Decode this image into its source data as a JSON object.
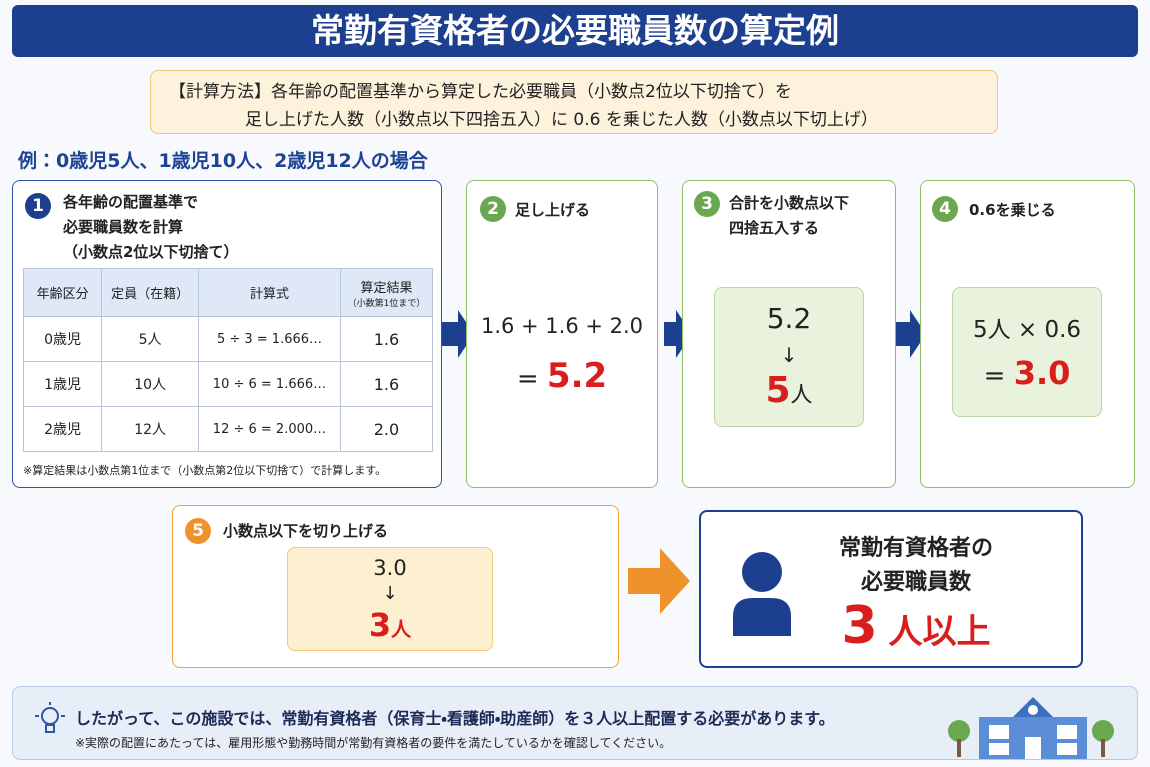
{
  "header": {
    "title": "常勤有資格者の必要職員数の算定例"
  },
  "method": {
    "line1": "【計算方法】各年齢の配置基準から算定した必要職員（小数点2位以下切捨て）を",
    "line2": "足し上げた人数（小数点以下四捨五入）に 0.6 を乗じた人数（小数点以下切上げ）"
  },
  "example": "例：0歳児5人、1歳児10人、2歳児12人の場合",
  "steps": [
    {
      "number": "1",
      "title_lines": [
        "各年齢の配置基準で",
        "必要職員数を計算",
        "（小数点2位以下切捨て）"
      ],
      "table": {
        "headers": [
          "年齢区分",
          "定員（在籍）",
          "計算式",
          "算定結果"
        ],
        "header_note": "（小数第1位まで）",
        "rows": [
          [
            "0歳児",
            "5人",
            "5 ÷ 3 = 1.666…",
            "1.6"
          ],
          [
            "1歳児",
            "10人",
            "10 ÷ 6 = 1.666…",
            "1.6"
          ],
          [
            "2歳児",
            "12人",
            "12 ÷ 6 = 2.000…",
            "2.0"
          ]
        ]
      },
      "note": "※算定結果は小数点第1位まで（小数点第2位以下切捨て）で計算します。"
    },
    {
      "number": "2",
      "title": "足し上げる",
      "formula": "1.6 + 1.6 + 2.0",
      "equals": "=",
      "result": "5.2"
    },
    {
      "number": "3",
      "title_lines": [
        "合計を小数点以下",
        "四捨五入する"
      ],
      "from": "5.2",
      "arrow": "↓",
      "result": "5",
      "unit": "人"
    },
    {
      "number": "4",
      "title": "0.6を乗じる",
      "formula": "5人 × 0.6",
      "equals": "=",
      "result": "3.0"
    },
    {
      "number": "5",
      "title": "小数点以下を切り上げる",
      "from": "3.0",
      "arrow": "↓",
      "result": "3",
      "unit": "人"
    }
  ],
  "result": {
    "lines": [
      "常勤有資格者の",
      "必要職員数"
    ],
    "value": "3",
    "unit": "人以上"
  },
  "conclusion": {
    "main": "したがって、この施設では、常勤有資格者（保育士・看護師・助産師）を３人以上配置する必要があります。",
    "note": "※実際の配置にあたっては、雇用形態や勤務時間が常勤有資格者の要件を満たしているかを確認してください。"
  }
}
